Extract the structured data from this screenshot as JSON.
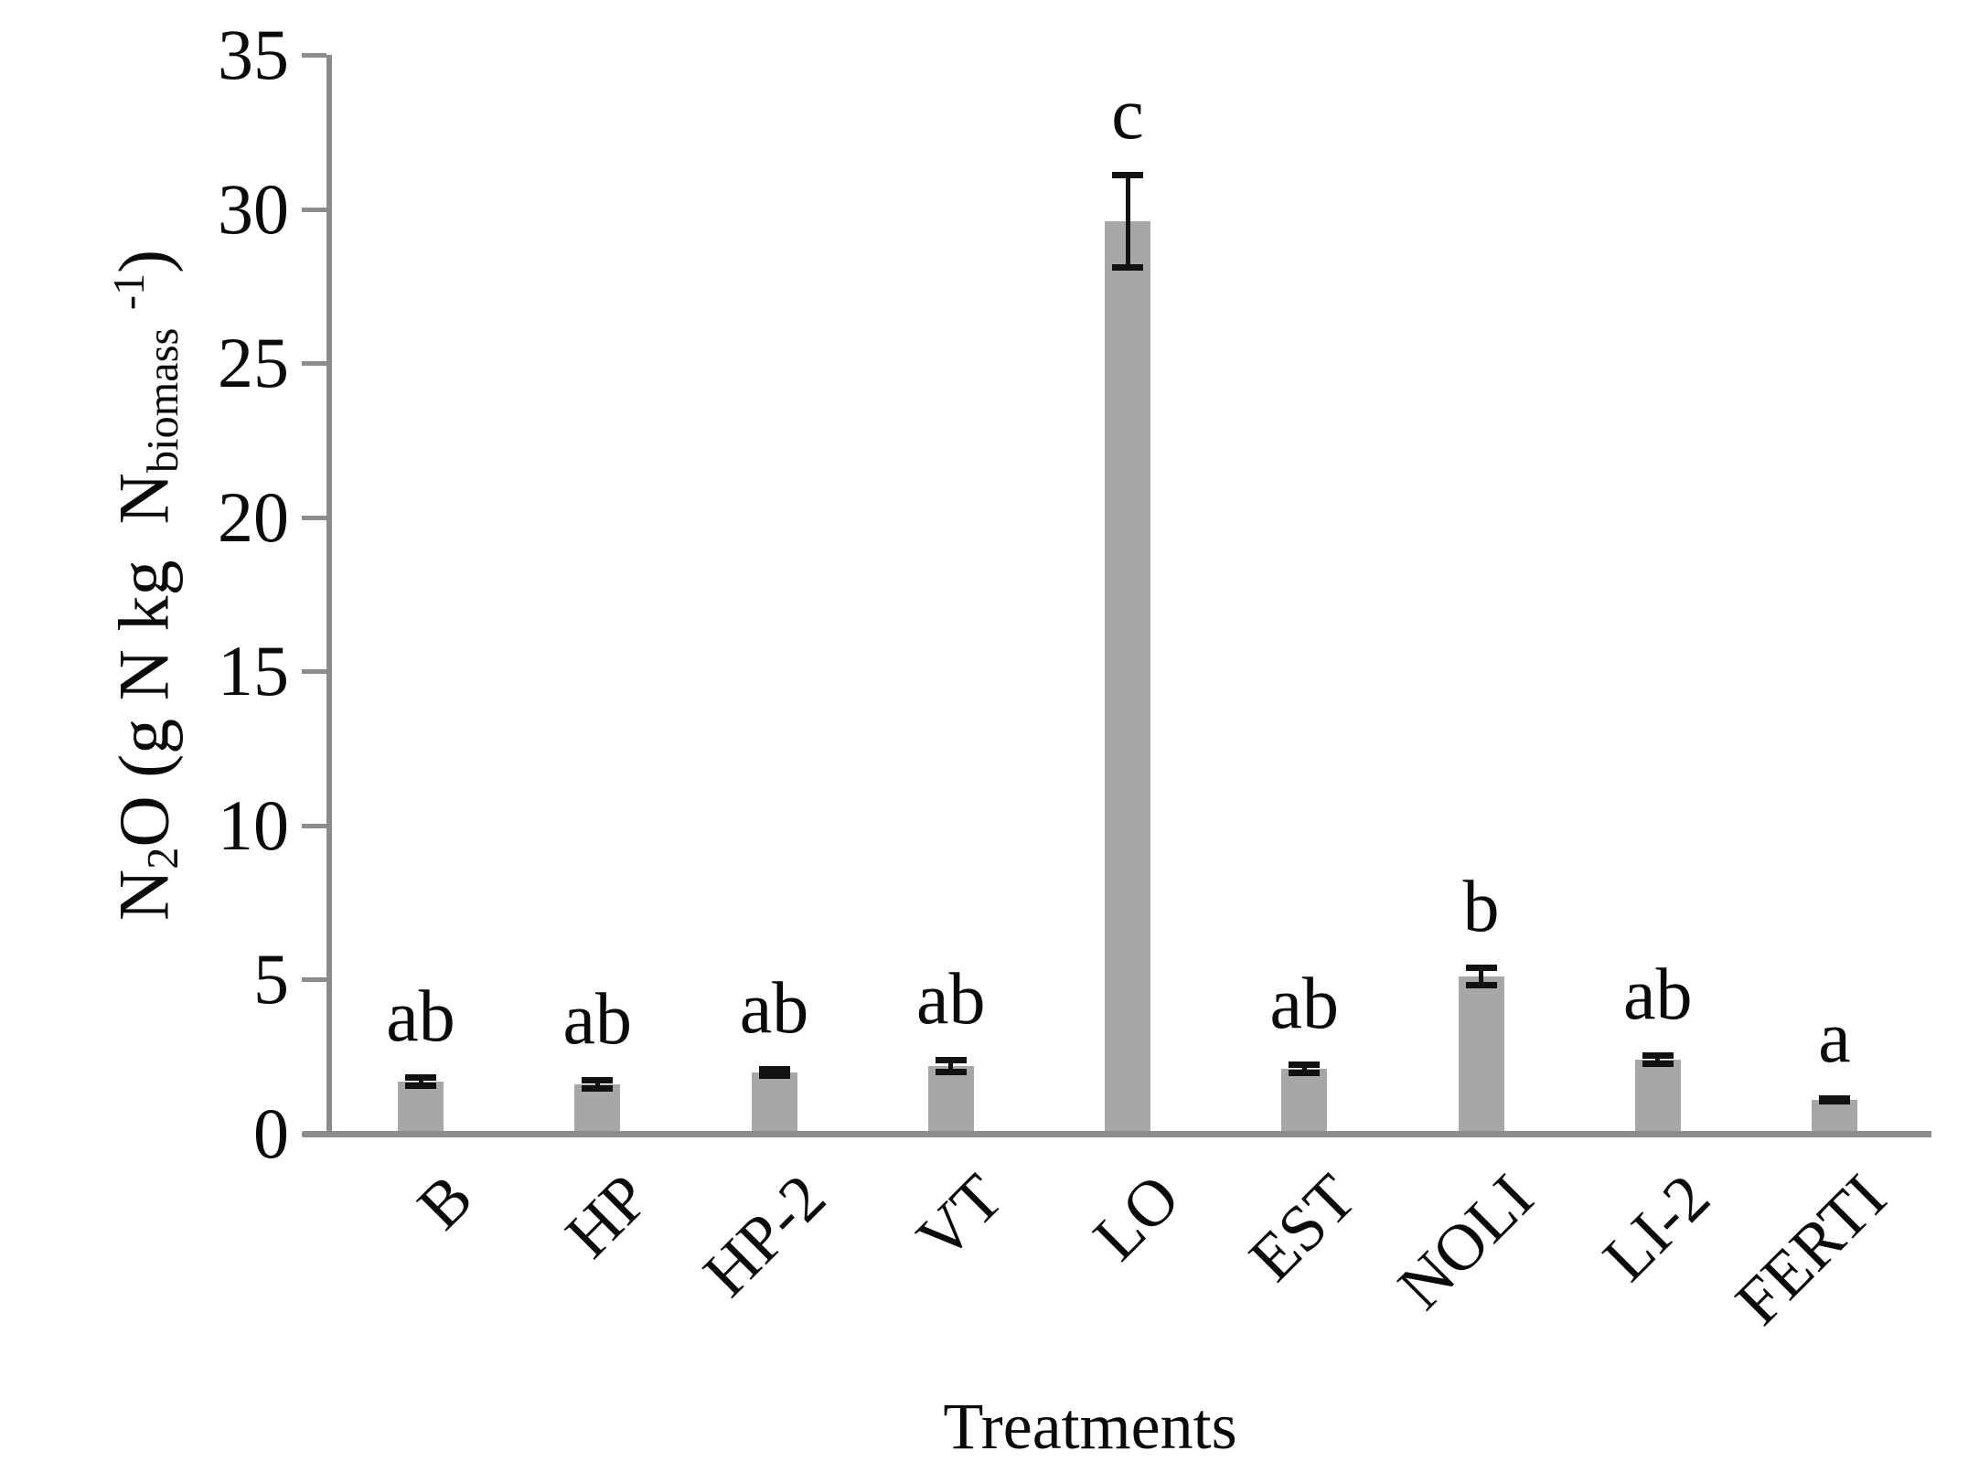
{
  "chart_data": {
    "type": "bar",
    "title": "",
    "xlabel": "Treatments",
    "ylabel": "N2O (g N kg  Nbiomass -1)",
    "ylabel_parts": [
      {
        "t": "N"
      },
      {
        "t": "2",
        "s": "sub"
      },
      {
        "t": "O (g N kg  N"
      },
      {
        "t": "biomass",
        "s": "sub"
      },
      {
        "t": " "
      },
      {
        "t": "-1",
        "s": "sup"
      },
      {
        "t": ")"
      }
    ],
    "categories": [
      "B",
      "HP",
      "HP-2",
      "VT",
      "LO",
      "EST",
      "NOLI",
      "LI-2",
      "FERTI"
    ],
    "values": [
      1.7,
      1.6,
      2.0,
      2.2,
      29.6,
      2.1,
      5.1,
      2.4,
      1.1
    ],
    "errors": [
      0.15,
      0.15,
      0.12,
      0.2,
      1.5,
      0.15,
      0.3,
      0.15,
      0.07
    ],
    "sig_letters": [
      "ab",
      "ab",
      "ab",
      "ab",
      "c",
      "ab",
      "b",
      "ab",
      "a"
    ],
    "ylim": [
      0,
      35
    ],
    "yticks": [
      0,
      5,
      10,
      15,
      20,
      25,
      30,
      35
    ],
    "grid": false,
    "legend": null,
    "bar_color": "#a7a7a7",
    "axis_color": "#8c8c8c",
    "error_bar_color": "#111111",
    "text_color": "#0a0a0a"
  }
}
